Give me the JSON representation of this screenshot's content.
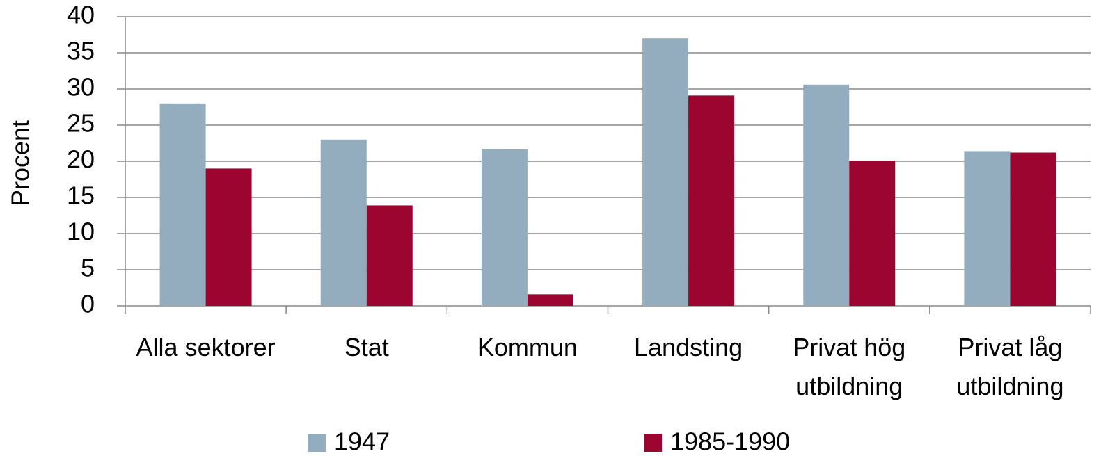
{
  "chart_data": {
    "type": "bar",
    "ylabel": "Procent",
    "categories": [
      "Alla sektorer",
      "Stat",
      "Kommun",
      "Landsting",
      "Privat hög utbildning",
      "Privat låg utbildning"
    ],
    "series": [
      {
        "name": "1947",
        "color": "#93adbf",
        "values": [
          28,
          23,
          21.7,
          37,
          30.6,
          21.4
        ]
      },
      {
        "name": "1985-1990",
        "color": "#9b0530",
        "values": [
          19,
          13.9,
          1.6,
          29.1,
          20.1,
          21.2
        ]
      }
    ],
    "ylim": [
      0,
      40
    ],
    "yticks": [
      0,
      5,
      10,
      15,
      20,
      25,
      30,
      35,
      40
    ],
    "grid": true,
    "legend": "bottom"
  }
}
